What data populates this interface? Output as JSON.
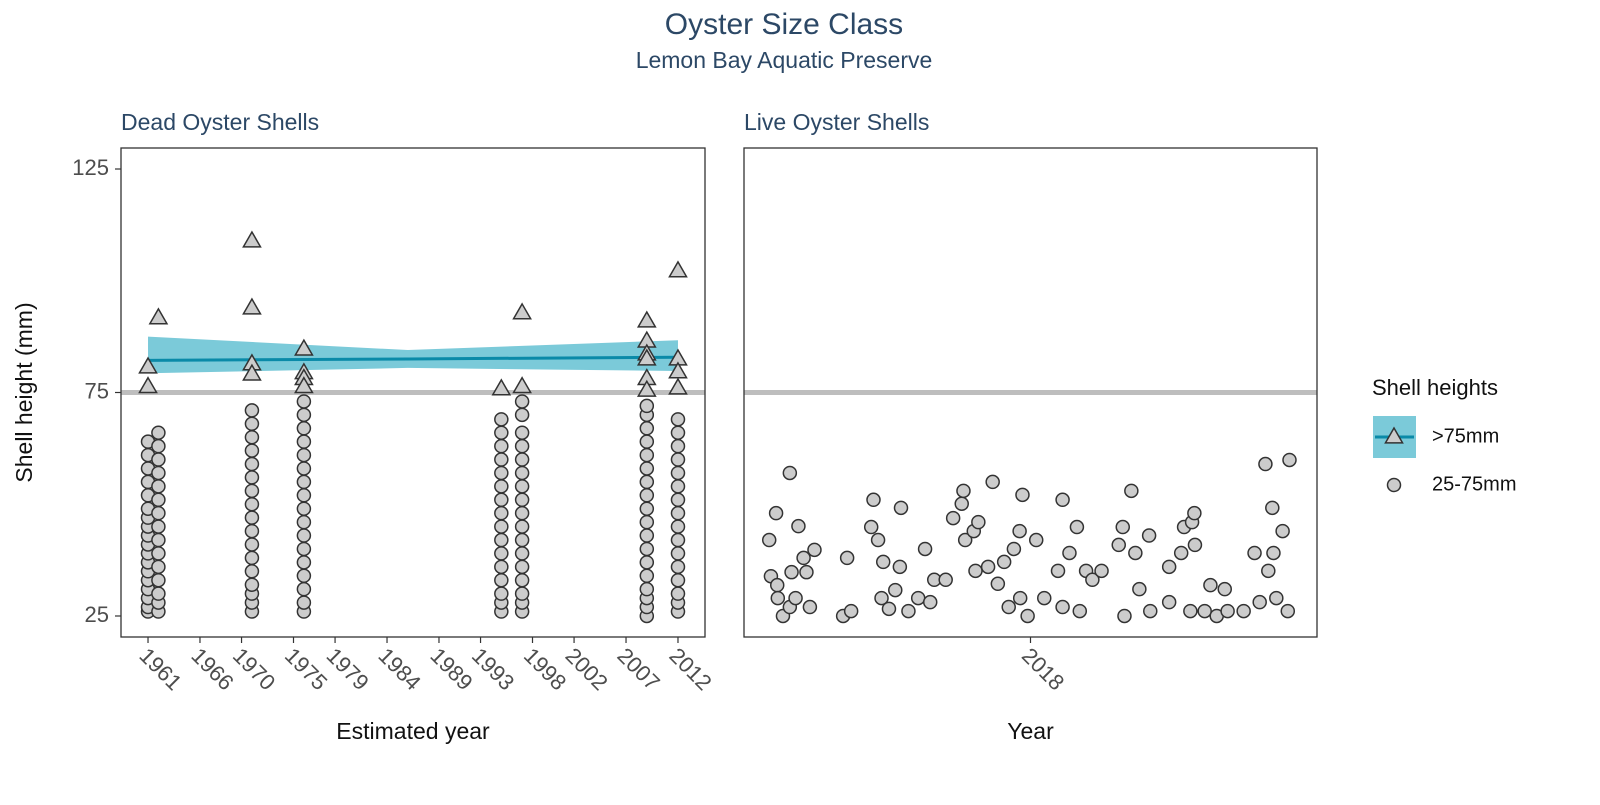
{
  "title": "Oyster Size Class",
  "subtitle": "Lemon Bay Aquatic Preserve",
  "legend_title": "Shell heights",
  "chart_data": [
    {
      "type": "scatter",
      "title": "Dead Oyster Shells",
      "x_label": "Estimated year",
      "y_label": "Shell height (mm)",
      "xlim": [
        1958.4,
        2014.6
      ],
      "ylim": [
        20.3,
        129.7
      ],
      "xticks": [
        1961,
        1966,
        1970,
        1975,
        1979,
        1984,
        1989,
        1993,
        1998,
        2002,
        2007,
        2012
      ],
      "yticks": [
        25,
        75,
        125
      ],
      "hline": 75,
      "hline_color": "#bebebe",
      "series": [
        {
          "name": "25-75mm",
          "marker": "circle",
          "color": "#cccccc",
          "x": [
            1961,
            1961,
            1961,
            1961,
            1961,
            1961,
            1961,
            1961,
            1961,
            1961,
            1961,
            1961,
            1961,
            1961,
            1961,
            1961,
            1961,
            1961,
            1962,
            1962,
            1962,
            1962,
            1962,
            1962,
            1962,
            1962,
            1962,
            1962,
            1962,
            1962,
            1962,
            1962,
            1962,
            1971,
            1971,
            1971,
            1971,
            1971,
            1971,
            1971,
            1971,
            1971,
            1971,
            1971,
            1971,
            1971,
            1971,
            1971,
            1971,
            1971,
            1976,
            1976,
            1976,
            1976,
            1976,
            1976,
            1976,
            1976,
            1976,
            1976,
            1976,
            1976,
            1976,
            1976,
            1976,
            1976,
            1976,
            1995,
            1995,
            1995,
            1995,
            1995,
            1995,
            1995,
            1995,
            1995,
            1995,
            1995,
            1995,
            1995,
            1995,
            1995,
            1995,
            1997,
            1997,
            1997,
            1997,
            1997,
            1997,
            1997,
            1997,
            1997,
            1997,
            1997,
            1997,
            1997,
            1997,
            1997,
            1997,
            1997,
            2009,
            2009,
            2009,
            2009,
            2009,
            2009,
            2009,
            2009,
            2009,
            2009,
            2009,
            2009,
            2009,
            2009,
            2009,
            2009,
            2009,
            2009,
            2012,
            2012,
            2012,
            2012,
            2012,
            2012,
            2012,
            2012,
            2012,
            2012,
            2012,
            2012,
            2012,
            2012,
            2012,
            2012
          ],
          "values": [
            26,
            27,
            29,
            31,
            33,
            35,
            37,
            39,
            41,
            43,
            45,
            47,
            49,
            52,
            55,
            58,
            61,
            64,
            26,
            28,
            30,
            33,
            36,
            39,
            42,
            45,
            48,
            51,
            54,
            57,
            60,
            63,
            66,
            26,
            28,
            30,
            32,
            35,
            38,
            41,
            44,
            47,
            50,
            53,
            56,
            59,
            62,
            65,
            68,
            71,
            26,
            28,
            31,
            34,
            37,
            40,
            43,
            46,
            49,
            52,
            55,
            58,
            61,
            64,
            67,
            70,
            73,
            26,
            28,
            30,
            33,
            36,
            39,
            42,
            45,
            48,
            51,
            54,
            57,
            60,
            63,
            66,
            69,
            26,
            28,
            30,
            33,
            36,
            39,
            42,
            45,
            48,
            51,
            54,
            57,
            60,
            63,
            66,
            70,
            73,
            25,
            27,
            29,
            31,
            34,
            37,
            40,
            43,
            46,
            49,
            52,
            55,
            58,
            61,
            64,
            67,
            70,
            72,
            26,
            28,
            30,
            33,
            36,
            39,
            42,
            45,
            48,
            51,
            54,
            57,
            60,
            63,
            66,
            69
          ]
        },
        {
          "name": ">75mm",
          "marker": "triangle",
          "color": "#cccccc",
          "x": [
            1961,
            1961,
            1962,
            1971,
            1971,
            1971,
            1971,
            1976,
            1976,
            1976,
            1976,
            1995,
            1997,
            1997,
            2009,
            2009,
            2009,
            2009,
            2009,
            2009,
            2012,
            2012,
            2012,
            2012
          ],
          "values": [
            80.7,
            76.3,
            91.7,
            108.9,
            93.9,
            81.4,
            79.1,
            84.7,
            79.4,
            78.1,
            76.3,
            75.8,
            76.3,
            92.8,
            91.0,
            86.5,
            83.6,
            82.5,
            78.1,
            75.5,
            102.2,
            82.5,
            79.6,
            76.0
          ]
        }
      ],
      "fit": {
        "color": "#0a8aa8",
        "ribbon_color": "#4fb8cc",
        "x": [
          1961,
          1986,
          2012
        ],
        "values": [
          82.2,
          82.5,
          82.9
        ],
        "lower": [
          79.3,
          80.5,
          79.8
        ],
        "upper": [
          87.5,
          84.5,
          86.7
        ]
      }
    },
    {
      "type": "scatter",
      "title": "Live Oyster Shells",
      "x_label": "Year",
      "xlim": [
        2017.5,
        2018.5
      ],
      "ylim": [
        20.3,
        129.7
      ],
      "xticks": [
        2018
      ],
      "hline": 75,
      "hline_color": "#bebebe",
      "series": [
        {
          "marker": "circle",
          "color": "#cccccc",
          "x": [
            2017.544,
            2017.556,
            2017.58,
            2017.595,
            2017.547,
            2017.558,
            2017.559,
            2017.568,
            2017.58,
            2017.583,
            2017.59,
            2017.604,
            2017.609,
            2017.623,
            2017.615,
            2017.673,
            2017.68,
            2017.687,
            2017.722,
            2017.726,
            2017.734,
            2017.743,
            2017.74,
            2017.753,
            2017.764,
            2017.774,
            2017.772,
            2017.787,
            2017.804,
            2017.816,
            2017.825,
            2017.832,
            2017.852,
            2017.865,
            2017.88,
            2017.883,
            2017.886,
            2017.901,
            2017.909,
            2017.904,
            2017.934,
            2017.926,
            2017.943,
            2017.954,
            2017.962,
            2017.971,
            2017.981,
            2017.986,
            2017.982,
            2017.995,
            2018.01,
            2018.024,
            2018.056,
            2018.048,
            2018.056,
            2018.068,
            2018.081,
            2018.086,
            2018.097,
            2018.108,
            2018.124,
            2018.154,
            2018.161,
            2018.164,
            2018.176,
            2018.183,
            2018.19,
            2018.207,
            2018.209,
            2018.242,
            2018.242,
            2018.263,
            2018.268,
            2018.282,
            2018.286,
            2018.287,
            2018.279,
            2018.304,
            2018.314,
            2018.325,
            2018.339,
            2018.344,
            2018.372,
            2018.391,
            2018.4,
            2018.41,
            2018.415,
            2018.422,
            2018.424,
            2018.429,
            2018.44,
            2018.449,
            2018.452
          ],
          "values": [
            42.0,
            48.0,
            57.0,
            45.1,
            33.9,
            31.9,
            29.0,
            25.0,
            27.0,
            34.8,
            29.0,
            38.0,
            34.8,
            39.8,
            27.0,
            25.0,
            38.0,
            26.1,
            44.9,
            51.0,
            42.0,
            37.1,
            29.0,
            26.6,
            30.8,
            49.2,
            36.0,
            26.1,
            29.0,
            40.0,
            28.1,
            33.1,
            33.1,
            46.9,
            50.1,
            53.0,
            42.0,
            44.0,
            46.0,
            35.1,
            55.0,
            36.0,
            32.2,
            37.1,
            27.0,
            40.0,
            44.0,
            52.1,
            29.0,
            25.0,
            42.0,
            29.0,
            51.0,
            35.1,
            27.0,
            39.1,
            44.9,
            26.1,
            35.1,
            33.1,
            35.1,
            40.9,
            44.9,
            25.0,
            53.0,
            39.1,
            31.0,
            43.0,
            26.1,
            36.0,
            28.1,
            39.1,
            44.9,
            46.0,
            48.0,
            40.9,
            26.1,
            26.1,
            31.9,
            25.0,
            31.0,
            26.1,
            26.1,
            39.1,
            28.1,
            59.0,
            35.1,
            49.2,
            39.1,
            29.0,
            44.0,
            26.1,
            59.9
          ]
        }
      ]
    }
  ]
}
